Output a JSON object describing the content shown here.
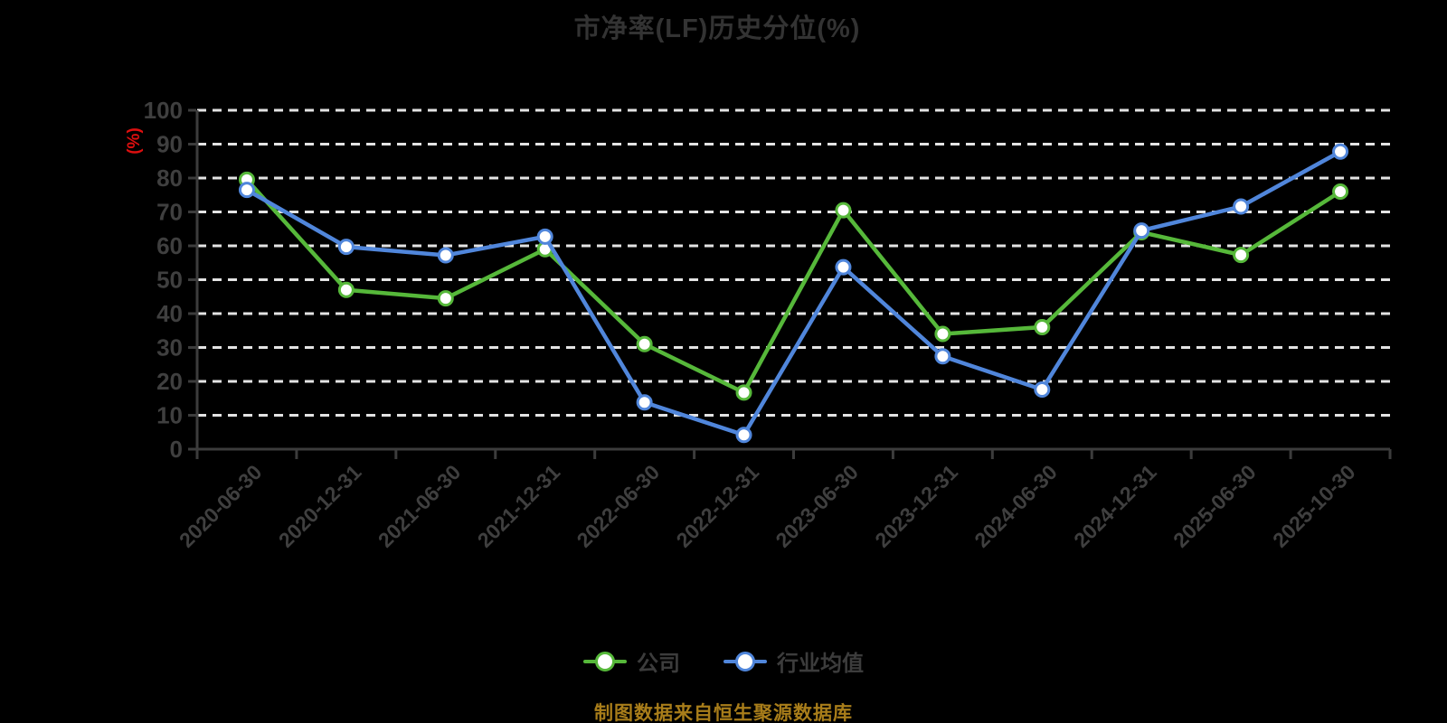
{
  "title": "市净率(LF)历史分位(%)",
  "footer": "制图数据来自恒生聚源数据库",
  "colors": {
    "background": "#000000",
    "title_text": "#333333",
    "axis_line": "#3c3c3c",
    "tick_label": "#3f3f3f",
    "gridline": "#e3e3e3",
    "unit_label_red": "#dd0f0f",
    "footer_gold": "#a87d1a",
    "marker_fill": "#ffffff",
    "series_company_green": "#56b83a",
    "series_industry_blue": "#5086db"
  },
  "chart_data": {
    "type": "line",
    "title": "市净率(LF)历史分位(%)",
    "xlabel": "",
    "ylabel": "(%)",
    "ylim": [
      0,
      100
    ],
    "ytick_step": 10,
    "grid": "horizontal-dashed-white-on-black",
    "legend_position": "bottom",
    "categories": [
      "2020-06-30",
      "2020-12-31",
      "2021-06-30",
      "2021-12-31",
      "2022-06-30",
      "2022-12-31",
      "2023-06-30",
      "2023-12-31",
      "2024-06-30",
      "2024-12-31",
      "2025-06-30",
      "2025-10-30"
    ],
    "series": [
      {
        "name": "公司",
        "color": "#56b83a",
        "values": [
          79.5,
          47.0,
          44.5,
          59.0,
          31.0,
          16.7,
          70.5,
          34.0,
          36.0,
          64.0,
          57.3,
          76.0
        ]
      },
      {
        "name": "行业均值",
        "color": "#5086db",
        "values": [
          76.5,
          59.7,
          57.2,
          62.7,
          13.8,
          4.2,
          53.7,
          27.4,
          17.6,
          64.5,
          71.6,
          87.8
        ]
      }
    ]
  }
}
